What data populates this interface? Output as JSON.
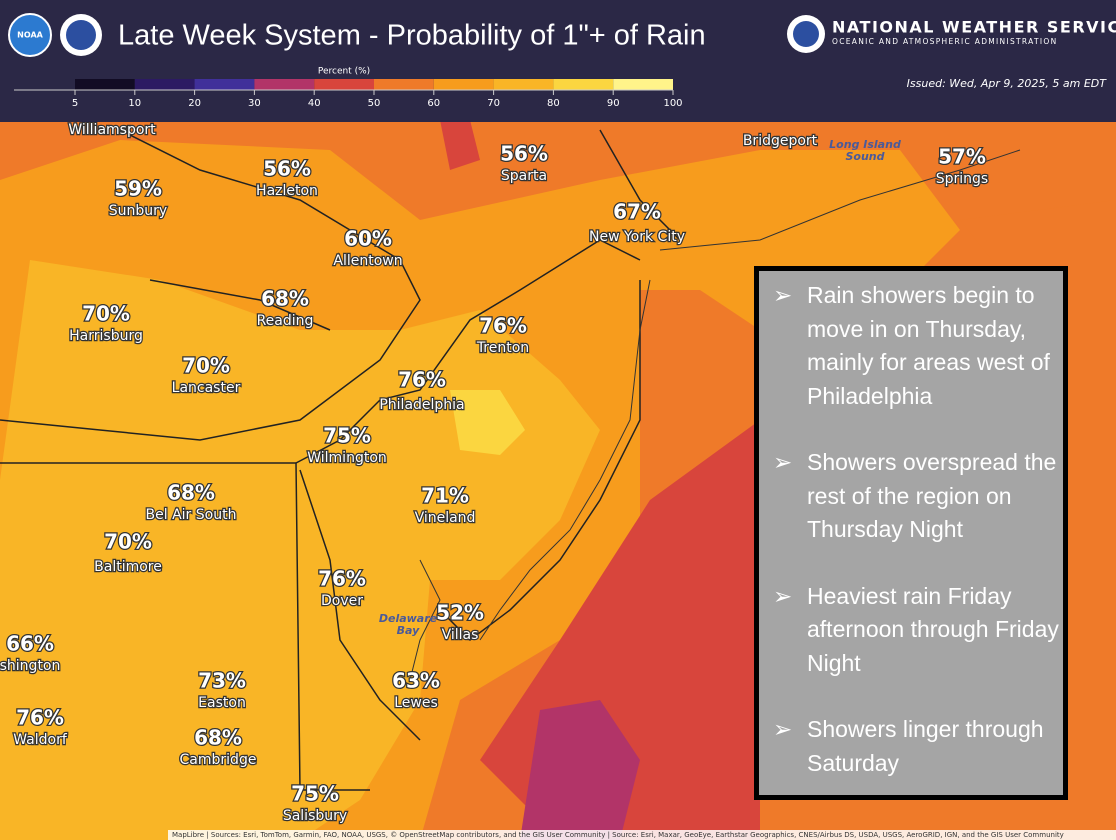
{
  "header": {
    "title": "Late Week System - Probability of 1\"+ of Rain",
    "agency": "NATIONAL WEATHER SERVICE",
    "agency_sub": "OCEANIC AND ATMOSPHERIC ADMINISTRATION",
    "issued": "Issued: Wed, Apr 9, 2025, 5 am EDT",
    "logo_left": "NOAA"
  },
  "legend": {
    "title": "Percent (%)",
    "ticks": [
      5,
      10,
      20,
      30,
      40,
      50,
      60,
      70,
      80,
      90,
      100
    ],
    "colors": [
      "#120c24",
      "#2c1a63",
      "#40309a",
      "#b23468",
      "#d8453c",
      "#ef7a29",
      "#f79c1d",
      "#f9b526",
      "#fbd640",
      "#fff48a"
    ]
  },
  "cities": [
    {
      "name": "Williamsport"
    },
    {
      "label": "59%",
      "name": "Sunbury"
    },
    {
      "label": "56%",
      "name": "Hazleton"
    },
    {
      "label": "60%",
      "name": "Allentown"
    },
    {
      "label": "56%",
      "name": "Sparta"
    },
    {
      "label": "67%",
      "name": "New York City"
    },
    {
      "name": "Bridgeport"
    },
    {
      "label": "57%",
      "name": "Springs"
    },
    {
      "label": "70%",
      "name": "Harrisburg"
    },
    {
      "label": "68%",
      "name": "Reading"
    },
    {
      "label": "76%",
      "name": "Trenton"
    },
    {
      "label": "70%",
      "name": "Lancaster"
    },
    {
      "label": "76%",
      "name": "Philadelphia"
    },
    {
      "label": "75%",
      "name": "Wilmington"
    },
    {
      "label": "71%",
      "name": "Vineland"
    },
    {
      "label": "68%",
      "name": "Bel Air South"
    },
    {
      "label": "70%",
      "name": "Baltimore"
    },
    {
      "label": "76%",
      "name": "Dover"
    },
    {
      "label": "52%",
      "name": "Villas"
    },
    {
      "label": "66%",
      "name": "shington"
    },
    {
      "label": "73%",
      "name": "Easton"
    },
    {
      "label": "63%",
      "name": "Lewes"
    },
    {
      "label": "76%",
      "name": "Waldorf"
    },
    {
      "label": "68%",
      "name": "Cambridge"
    },
    {
      "label": "75%",
      "name": "Salisbury"
    }
  ],
  "water": [
    "Long Island\nSound",
    "Delaware\nBay"
  ],
  "notes": [
    "Rain showers begin to move in on Thursday, mainly for areas west of Philadelphia",
    "Showers overspread the rest of the region on Thursday Night",
    "Heaviest rain Friday afternoon through Friday Night",
    "Showers linger through Saturday"
  ],
  "attribution": "MapLibre | Sources: Esri, TomTom, Garmin, FAO, NOAA, USGS, © OpenStreetMap contributors, and the GIS User Community | Source: Esri, Maxar, GeoEye, Earthstar Geographics, CNES/Airbus DS, USDA, USGS, AeroGRID, IGN, and the GIS User Community"
}
